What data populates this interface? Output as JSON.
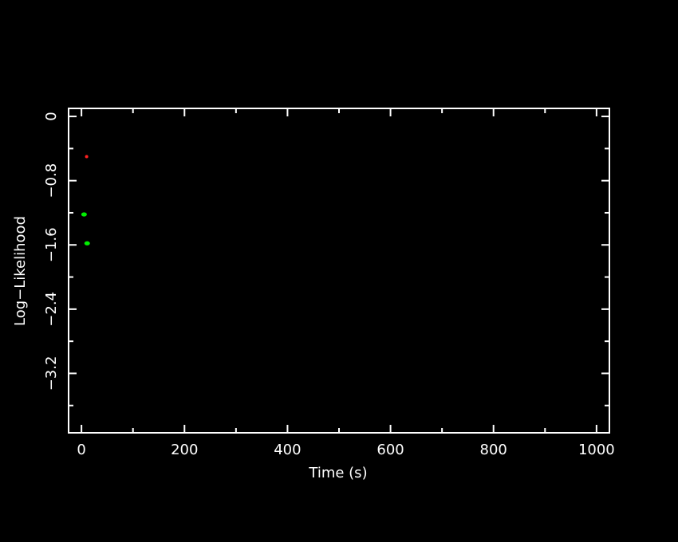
{
  "chart_data": {
    "type": "scatter",
    "xlabel": "Time (s)",
    "ylabel": "Log−Likelihood",
    "xlim": [
      -25,
      1025
    ],
    "ylim": [
      -3.94,
      0.1
    ],
    "xticks": {
      "major": [
        0,
        200,
        400,
        600,
        800,
        1000
      ],
      "labels": [
        "0",
        "200",
        "400",
        "600",
        "800",
        "1000"
      ],
      "minor_step": 100
    },
    "yticks": {
      "major": [
        0,
        -0.8,
        -1.6,
        -2.4,
        -3.2
      ],
      "labels": [
        "0",
        "−0.8",
        "−1.6",
        "−2.4",
        "−3.2"
      ],
      "minor_step": 0.4
    },
    "grid": false,
    "series": [
      {
        "color": "#ff2020",
        "points": [
          {
            "x": 10,
            "y": -0.5
          }
        ]
      },
      {
        "color": "#00ee00",
        "points": [
          {
            "x": 5,
            "y": -1.22
          },
          {
            "x": 11,
            "y": -1.58
          }
        ]
      }
    ],
    "colors": {
      "background": "#000000",
      "axes": "#ffffff"
    }
  }
}
